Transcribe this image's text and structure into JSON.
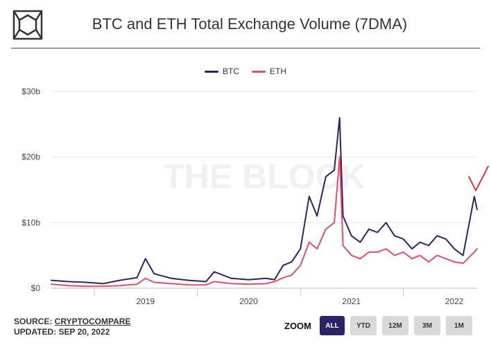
{
  "title": "BTC and ETH Total Exchange Volume (7DMA)",
  "watermark": "THE BLOCK",
  "legend": [
    "BTC",
    "ETH"
  ],
  "colors": {
    "btc": "#2a2366",
    "eth": "#e94a6a",
    "accent": "#8b1f8f",
    "annotation": "#e0232a"
  },
  "source": {
    "prefix": "SOURCE: ",
    "name": "CRYPTOCOMPARE",
    "updated": "UPDATED: SEP 20, 2022"
  },
  "zoom": {
    "label": "ZOOM",
    "buttons": [
      "ALL",
      "YTD",
      "12M",
      "3M",
      "1M"
    ],
    "active": "ALL"
  },
  "chart_data": {
    "type": "line",
    "x_labels": [
      "2019",
      "2020",
      "2021",
      "2022"
    ],
    "y_ticks": [
      "$0",
      "$10b",
      "$20b",
      "$30b"
    ],
    "ylim": [
      0,
      30
    ],
    "y_unit": "billion USD",
    "grid": true,
    "legend_position": "top-center",
    "x_range": [
      "2018-08",
      "2022-09-20"
    ],
    "x": [
      "2018-08",
      "2018-10",
      "2018-12",
      "2019-02",
      "2019-04",
      "2019-06",
      "2019-07",
      "2019-08",
      "2019-10",
      "2019-12",
      "2020-02",
      "2020-03",
      "2020-05",
      "2020-07",
      "2020-09",
      "2020-10",
      "2020-11",
      "2020-12",
      "2021-01",
      "2021-02",
      "2021-03",
      "2021-04",
      "2021-05",
      "2021-05-20",
      "2021-06",
      "2021-07",
      "2021-08",
      "2021-09",
      "2021-10",
      "2021-11",
      "2021-12",
      "2022-01",
      "2022-02",
      "2022-03",
      "2022-04",
      "2022-05",
      "2022-06",
      "2022-07",
      "2022-08",
      "2022-09-10",
      "2022-09-20"
    ],
    "series": [
      {
        "name": "BTC",
        "values": [
          1.2,
          1.0,
          0.9,
          0.7,
          1.2,
          1.6,
          4.5,
          2.2,
          1.5,
          1.2,
          1.0,
          2.5,
          1.5,
          1.3,
          1.5,
          1.3,
          3.5,
          4.0,
          6.0,
          14.0,
          11.0,
          17.0,
          18.0,
          26.0,
          11.0,
          8.0,
          7.0,
          9.0,
          8.5,
          10.0,
          8.0,
          7.5,
          6.0,
          7.0,
          6.5,
          8.0,
          7.5,
          6.0,
          5.0,
          14.0,
          12.0
        ]
      },
      {
        "name": "ETH",
        "values": [
          0.6,
          0.4,
          0.3,
          0.3,
          0.4,
          0.6,
          1.5,
          0.9,
          0.7,
          0.5,
          0.5,
          1.0,
          0.7,
          0.6,
          0.7,
          1.0,
          1.6,
          2.0,
          3.5,
          7.0,
          6.0,
          9.0,
          10.0,
          20.0,
          6.5,
          5.0,
          4.5,
          5.5,
          5.5,
          6.0,
          5.0,
          5.5,
          4.5,
          5.0,
          4.0,
          5.0,
          4.5,
          4.0,
          3.8,
          5.5,
          6.0
        ]
      }
    ]
  }
}
